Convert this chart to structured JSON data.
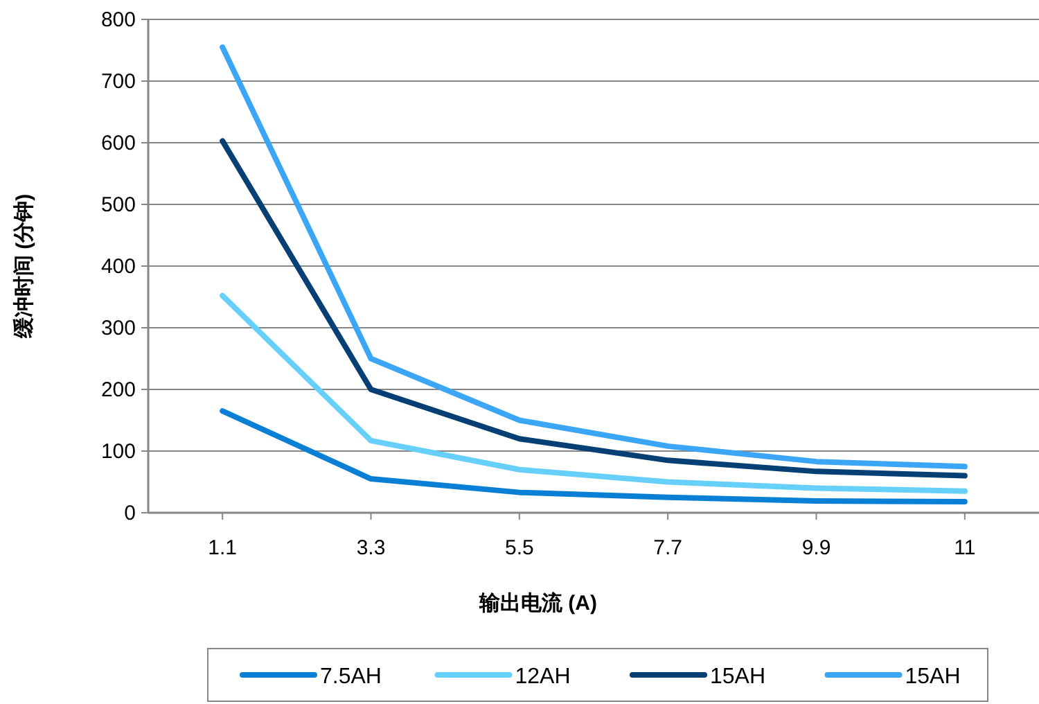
{
  "chart_data": {
    "type": "line",
    "xlabel": "输出电流 (A)",
    "ylabel": "缓冲时间 (分钟)",
    "categories": [
      "1.1",
      "3.3",
      "5.5",
      "7.7",
      "9.9",
      "11"
    ],
    "series": [
      {
        "name": "7.5AH",
        "color": "#0a7fd6",
        "values": [
          165,
          55,
          33,
          25,
          19,
          18
        ]
      },
      {
        "name": "12AH",
        "color": "#66d0fa",
        "values": [
          352,
          117,
          70,
          50,
          40,
          35
        ]
      },
      {
        "name": "15AH",
        "color": "#053f73",
        "values": [
          603,
          200,
          120,
          85,
          67,
          60
        ]
      },
      {
        "name": "15AH",
        "color": "#3aa6f5",
        "values": [
          755,
          250,
          150,
          108,
          83,
          75
        ]
      }
    ],
    "ylim": [
      0,
      800
    ],
    "yticks": [
      0,
      100,
      200,
      300,
      400,
      500,
      600,
      700,
      800
    ],
    "grid": "y",
    "legend": "bottom",
    "marker": "none",
    "line_style": "solid"
  }
}
